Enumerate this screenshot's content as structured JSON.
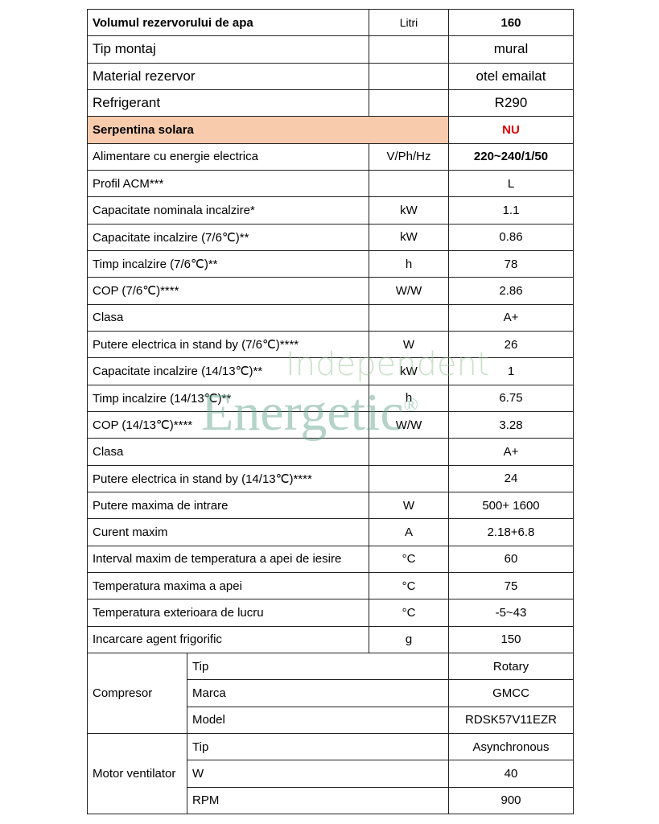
{
  "table": {
    "rows": [
      {
        "label": "Volumul rezervorului de apa",
        "unit": "Litri",
        "value": "160",
        "style": "bold"
      },
      {
        "label": "Tip montaj",
        "value": "mural",
        "style": "large"
      },
      {
        "label": "Material rezervor",
        "value": "otel emailat",
        "style": "large"
      },
      {
        "label": "Refrigerant",
        "value": "R290",
        "style": "large"
      },
      {
        "label": "Serpentina solara",
        "value": "NU",
        "style": "highlight"
      },
      {
        "label": "Alimentare cu energie electrica",
        "unit": "V/Ph/Hz",
        "value": "220~240/1/50",
        "style": "boldvalue"
      },
      {
        "label": "Profil ACM***",
        "value": "L"
      },
      {
        "label": "Capacitate nominala incalzire*",
        "unit": "kW",
        "value": "1.1"
      },
      {
        "label": "Capacitate incalzire (7/6℃)**",
        "unit": "kW",
        "value": "0.86"
      },
      {
        "label": "Timp incalzire (7/6℃)**",
        "unit": "h",
        "value": "78"
      },
      {
        "label": "COP (7/6℃)****",
        "unit": "W/W",
        "value": "2.86"
      },
      {
        "label": "Clasa",
        "value": "A+"
      },
      {
        "label": "Putere electrica in stand by (7/6℃)****",
        "unit": "W",
        "value": "26"
      },
      {
        "label": "Capacitate incalzire (14/13℃)**",
        "unit": "kW",
        "value": "1"
      },
      {
        "label": "Timp incalzire (14/13℃)**",
        "unit": "h",
        "value": "6.75"
      },
      {
        "label": "COP (14/13℃)****",
        "unit": "W/W",
        "value": "3.28"
      },
      {
        "label": "Clasa",
        "value": "A+"
      },
      {
        "label": "Putere electrica in stand by (14/13℃)****",
        "value": "24"
      },
      {
        "label": "Putere maxima de intrare",
        "unit": "W",
        "value": "500+ 1600"
      },
      {
        "label": "Curent maxim",
        "unit": "A",
        "value": "2.18+6.8"
      },
      {
        "label": "Interval maxim de temperatura a apei de iesire",
        "unit": "°C",
        "value": "60"
      },
      {
        "label": "Temperatura maxima a apei",
        "unit": "°C",
        "value": "75"
      },
      {
        "label": "Temperatura exterioara de lucru",
        "unit": "°C",
        "value": "-5~43"
      },
      {
        "label": "Incarcare agent frigorific",
        "unit": "g",
        "value": "150"
      }
    ],
    "groups": [
      {
        "label": "Compresor",
        "items": [
          {
            "label": "Tip",
            "value": "Rotary"
          },
          {
            "label": "Marca",
            "value": "GMCC"
          },
          {
            "label": "Model",
            "value": "RDSK57V11EZR"
          }
        ]
      },
      {
        "label": "Motor ventilator",
        "items": [
          {
            "label": "Tip",
            "value": "Asynchronous"
          },
          {
            "label": "W",
            "value": "40"
          },
          {
            "label": "RPM",
            "value": "900"
          }
        ]
      }
    ]
  },
  "watermark": {
    "line1": "Independent",
    "line2": "Energetic",
    "mark": "®"
  }
}
